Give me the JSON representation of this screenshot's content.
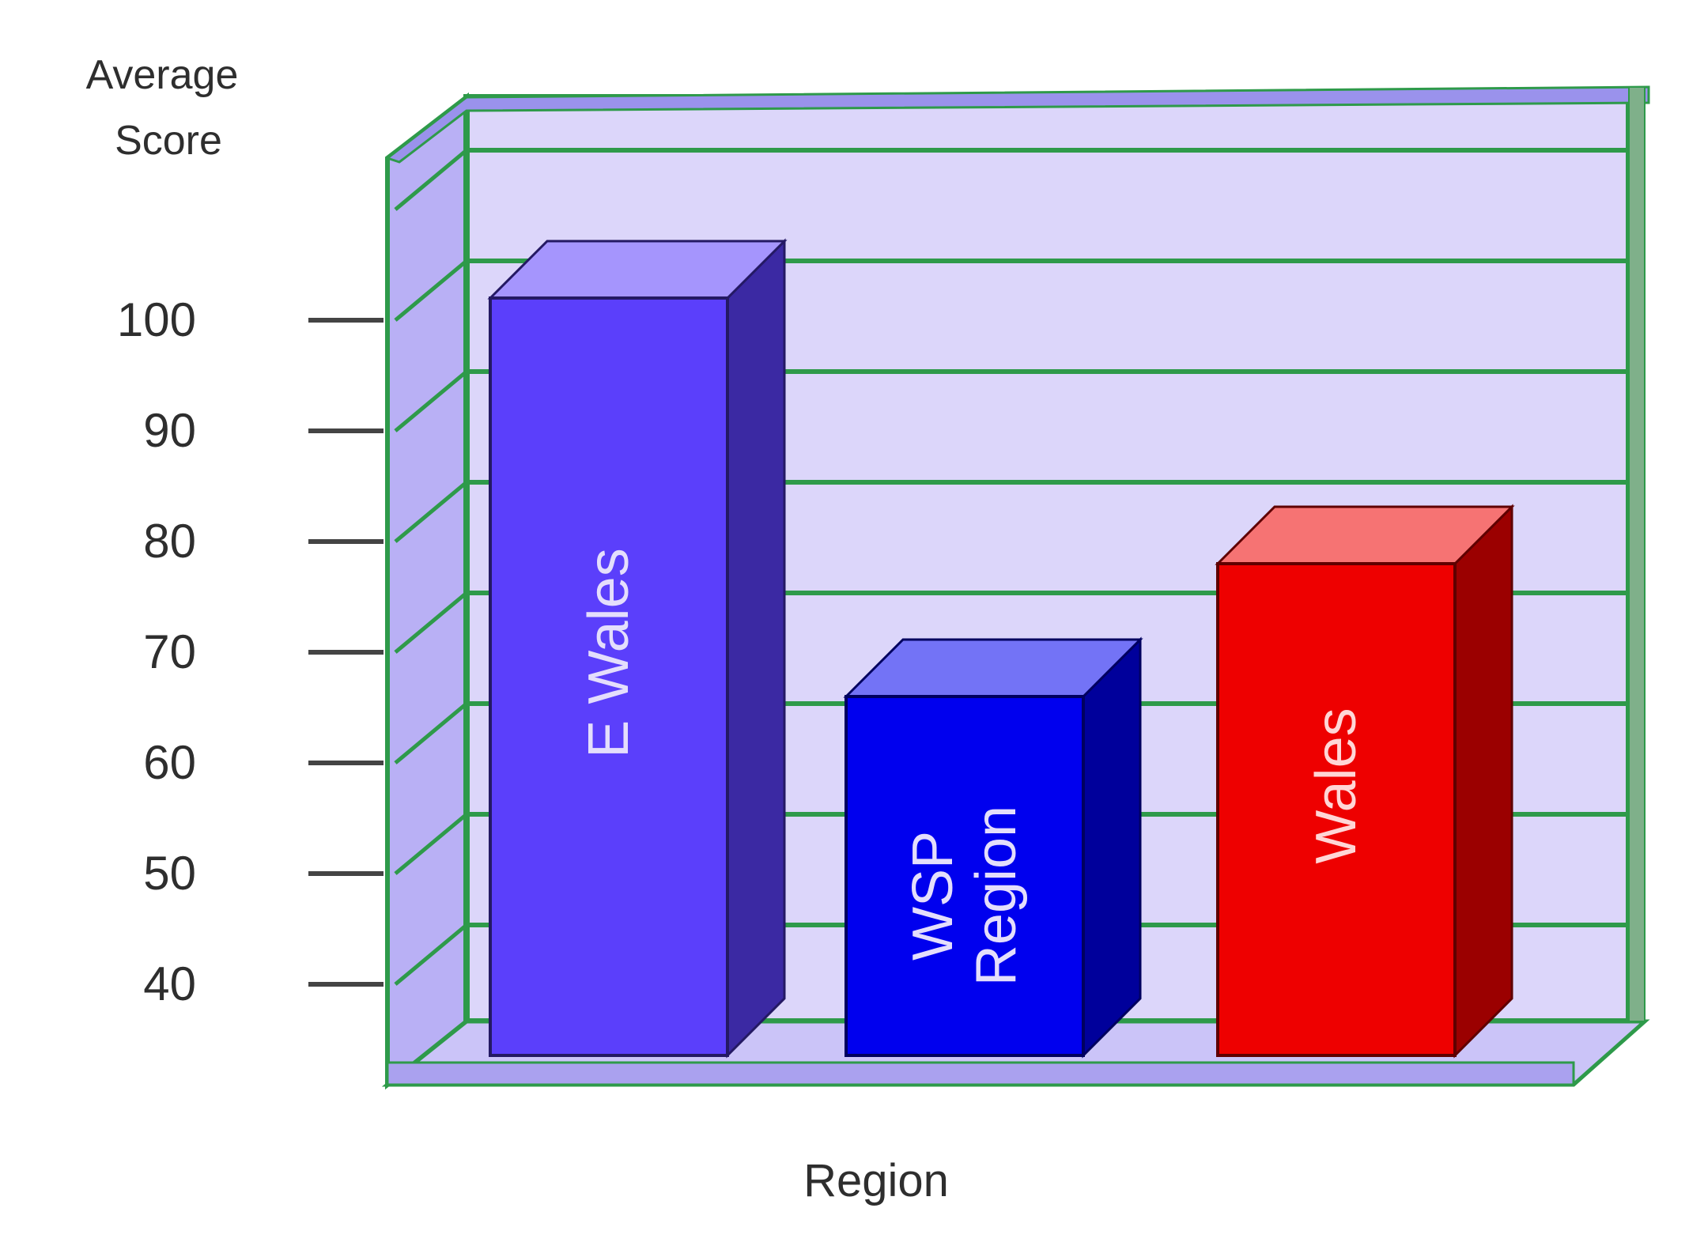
{
  "chart_data": {
    "type": "bar",
    "title": "",
    "ylabel": "Average Score",
    "xlabel": "Region",
    "y_ticks": [
      40,
      50,
      60,
      70,
      80,
      90,
      100
    ],
    "ylim": [
      30,
      110
    ],
    "grid": true,
    "three_d": true,
    "categories": [
      "E Wales",
      "WSP Region",
      "Wales"
    ],
    "values": [
      102,
      66,
      78
    ],
    "colors": [
      "#5b3ffb",
      "#0000ee",
      "#ee0000"
    ],
    "bar_labels": [
      "E Wales",
      "WSP Region",
      "Wales"
    ]
  },
  "style": {
    "plot_background": "#dcd6fa",
    "side_wall": "#b9b0f5",
    "frame_color": "#2e9a4a"
  }
}
